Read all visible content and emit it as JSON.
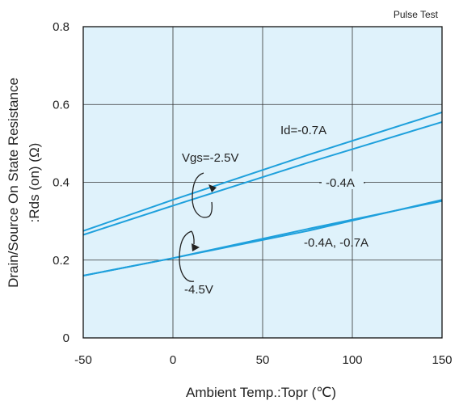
{
  "chart_data": {
    "type": "line",
    "note": "Pulse Test",
    "xlabel": "Ambient Temp.:Topr (℃)",
    "ylabel_line1": "Drain/Source On State Resistance",
    "ylabel_line2": ":Rds (on) (Ω)",
    "xlim": [
      -50,
      150
    ],
    "ylim": [
      0,
      0.8
    ],
    "x_ticks": [
      "-50",
      "0",
      "50",
      "100",
      "150"
    ],
    "y_ticks": [
      "0",
      "0.2",
      "0.4",
      "0.6",
      "0.8"
    ],
    "grid": true,
    "colors": {
      "plot_bg": "#dff2fb",
      "line": "#1ea0dc",
      "frame": "#111111",
      "grid": "#333333"
    },
    "series": [
      {
        "x": [
          -50,
          0,
          75,
          150
        ],
        "values": [
          0.275,
          0.355,
          0.47,
          0.58
        ]
      },
      {
        "x": [
          -50,
          0,
          75,
          150
        ],
        "values": [
          0.265,
          0.34,
          0.45,
          0.555
        ]
      },
      {
        "x": [
          -50,
          0,
          75,
          150
        ],
        "values": [
          0.16,
          0.205,
          0.275,
          0.355
        ]
      },
      {
        "x": [
          -50,
          0,
          75,
          150
        ],
        "values": [
          0.16,
          0.205,
          0.28,
          0.352
        ]
      }
    ],
    "annotations": {
      "vgs_high": "Vgs=-2.5V",
      "vgs_low": "-4.5V",
      "id_07": "Id=-0.7A",
      "id_04": "-0.4A",
      "id_both": "-0.4A, -0.7A"
    }
  }
}
